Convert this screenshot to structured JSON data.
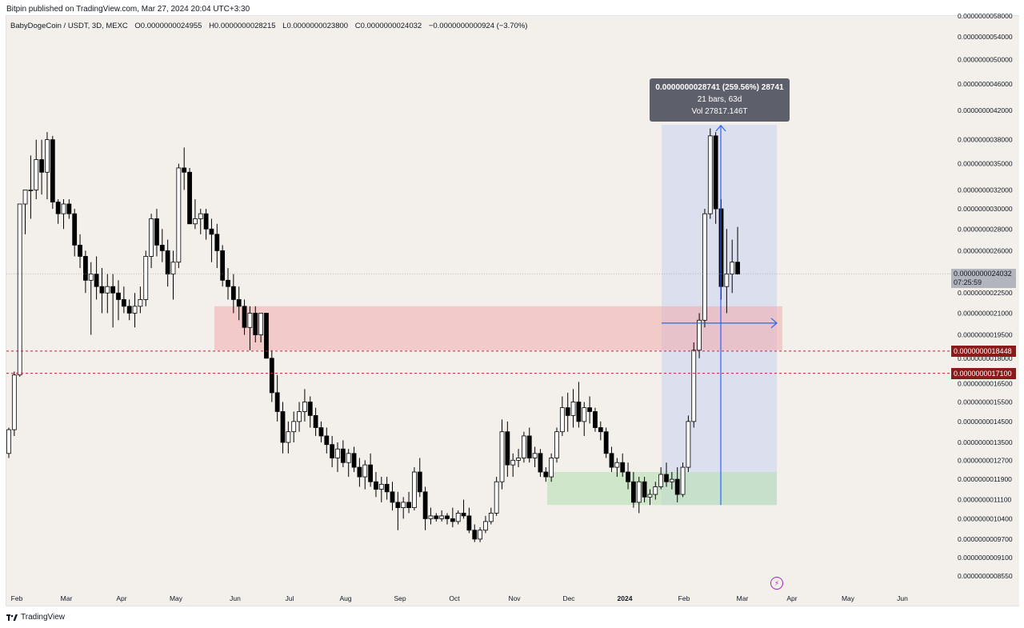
{
  "header": {
    "publisher_line": "Bitpin published on TradingView.com, Mar 27, 2024 20:04 UTC+3:30"
  },
  "legend": {
    "symbol": "BabyDogeCoin / USDT, 3D, MEXC",
    "open": "O0.0000000024955",
    "high": "H0.0000000028215",
    "low": "L0.0000000023800",
    "close": "C0.0000000024032",
    "change": "−0.0000000000924 (−3.70%)"
  },
  "measure": {
    "line1": "0.0000000028741 (259.56%) 28741",
    "line2": "21 bars, 63d",
    "line3": "Vol 27817.146T"
  },
  "price_tags": {
    "current_value": "0.0000000024032",
    "countdown": "07:25:59",
    "level_upper": "0.0000000018448",
    "level_lower": "0.0000000017100"
  },
  "footer": {
    "brand": "TradingView"
  },
  "colors": {
    "up": "#ffffff",
    "down": "#000000",
    "wick": "#000000",
    "resistance_zone": "#f2a3a8",
    "support_zone": "#b9e0b4",
    "measure_zone": "#c9d3f0",
    "arrow": "#2962ff",
    "level_line": "#b22833",
    "tag_red": "#8b1a1a"
  },
  "chart_data": {
    "type": "candlestick",
    "title": "",
    "xlabel": "",
    "ylabel": "",
    "y_scale": "log",
    "ylim": [
      8e-10,
      6.1e-09
    ],
    "y_ticks": [
      "0.0000000058000",
      "0.0000000054000",
      "0.0000000050000",
      "0.0000000046000",
      "0.0000000042000",
      "0.0000000038000",
      "0.0000000035000",
      "0.0000000032000",
      "0.0000000030000",
      "0.0000000028000",
      "0.0000000026000",
      "0.0000000022500",
      "0.0000000021000",
      "0.0000000019500",
      "0.0000000018000",
      "0.0000000016500",
      "0.0000000015500",
      "0.0000000014500",
      "0.0000000013500",
      "0.0000000012700",
      "0.0000000011900",
      "0.0000000011100",
      "0.0000000010400",
      "0.0000000009700",
      "0.0000000009100",
      "0.0000000008550"
    ],
    "x_ticks": [
      "Feb",
      "Mar",
      "Apr",
      "May",
      "Jun",
      "Jul",
      "Aug",
      "Sep",
      "Oct",
      "Nov",
      "Dec",
      "2024",
      "Feb",
      "Mar",
      "Apr",
      "May",
      "Jun"
    ],
    "candles": [
      [
        1.3,
        1.42,
        1.28,
        1.41
      ],
      [
        1.41,
        1.72,
        1.38,
        1.7
      ],
      [
        1.7,
        3.05,
        1.69,
        3.05
      ],
      [
        3.05,
        3.2,
        2.75,
        3.2
      ],
      [
        3.2,
        3.6,
        2.9,
        3.2
      ],
      [
        3.2,
        3.8,
        3.1,
        3.55
      ],
      [
        3.55,
        3.8,
        3.15,
        3.4
      ],
      [
        3.4,
        3.9,
        3.1,
        3.8
      ],
      [
        3.8,
        3.85,
        3.0,
        3.07
      ],
      [
        3.07,
        3.1,
        2.85,
        2.95
      ],
      [
        2.95,
        3.1,
        2.8,
        3.05
      ],
      [
        3.05,
        3.1,
        2.9,
        2.95
      ],
      [
        2.95,
        3.0,
        2.55,
        2.65
      ],
      [
        2.65,
        2.75,
        2.45,
        2.55
      ],
      [
        2.55,
        2.6,
        2.25,
        2.35
      ],
      [
        2.35,
        2.5,
        1.95,
        2.4
      ],
      [
        2.4,
        2.55,
        2.2,
        2.3
      ],
      [
        2.3,
        2.45,
        2.1,
        2.25
      ],
      [
        2.25,
        2.4,
        2.1,
        2.3
      ],
      [
        2.3,
        2.4,
        2.0,
        2.25
      ],
      [
        2.25,
        2.35,
        2.05,
        2.2
      ],
      [
        2.2,
        2.3,
        2.1,
        2.15
      ],
      [
        2.15,
        2.2,
        2.05,
        2.1
      ],
      [
        2.1,
        2.25,
        2.0,
        2.15
      ],
      [
        2.15,
        2.3,
        2.1,
        2.2
      ],
      [
        2.2,
        2.6,
        2.15,
        2.55
      ],
      [
        2.55,
        2.95,
        2.45,
        2.9
      ],
      [
        2.9,
        3.0,
        2.55,
        2.65
      ],
      [
        2.65,
        2.8,
        2.5,
        2.6
      ],
      [
        2.6,
        2.7,
        2.3,
        2.4
      ],
      [
        2.4,
        2.6,
        2.2,
        2.5
      ],
      [
        2.5,
        3.5,
        2.45,
        3.45
      ],
      [
        3.45,
        3.7,
        3.2,
        3.4
      ],
      [
        3.4,
        3.45,
        2.85,
        2.85
      ],
      [
        2.85,
        3.1,
        2.8,
        2.9
      ],
      [
        2.9,
        3.0,
        2.75,
        2.95
      ],
      [
        2.95,
        3.0,
        2.7,
        2.8
      ],
      [
        2.8,
        2.9,
        2.5,
        2.75
      ],
      [
        2.75,
        2.85,
        2.45,
        2.6
      ],
      [
        2.6,
        2.65,
        2.3,
        2.35
      ],
      [
        2.35,
        2.45,
        2.2,
        2.3
      ],
      [
        2.3,
        2.4,
        2.1,
        2.2
      ],
      [
        2.2,
        2.3,
        2.05,
        2.15
      ],
      [
        2.15,
        2.2,
        1.95,
        2.0
      ],
      [
        2.0,
        2.15,
        1.85,
        2.1
      ],
      [
        2.1,
        2.15,
        1.9,
        1.95
      ],
      [
        1.95,
        2.1,
        1.9,
        2.1
      ],
      [
        2.1,
        2.1,
        1.8,
        1.8
      ],
      [
        1.8,
        1.85,
        1.55,
        1.6
      ],
      [
        1.6,
        1.7,
        1.45,
        1.5
      ],
      [
        1.5,
        1.55,
        1.3,
        1.35
      ],
      [
        1.35,
        1.45,
        1.3,
        1.4
      ],
      [
        1.4,
        1.5,
        1.35,
        1.45
      ],
      [
        1.45,
        1.55,
        1.4,
        1.5
      ],
      [
        1.5,
        1.62,
        1.45,
        1.55
      ],
      [
        1.55,
        1.58,
        1.42,
        1.48
      ],
      [
        1.48,
        1.52,
        1.38,
        1.42
      ],
      [
        1.42,
        1.45,
        1.35,
        1.38
      ],
      [
        1.38,
        1.42,
        1.3,
        1.34
      ],
      [
        1.34,
        1.38,
        1.24,
        1.28
      ],
      [
        1.28,
        1.35,
        1.22,
        1.32
      ],
      [
        1.32,
        1.36,
        1.24,
        1.26
      ],
      [
        1.26,
        1.32,
        1.2,
        1.3
      ],
      [
        1.3,
        1.33,
        1.22,
        1.24
      ],
      [
        1.24,
        1.28,
        1.16,
        1.2
      ],
      [
        1.2,
        1.27,
        1.15,
        1.25
      ],
      [
        1.25,
        1.3,
        1.16,
        1.18
      ],
      [
        1.18,
        1.22,
        1.12,
        1.15
      ],
      [
        1.15,
        1.2,
        1.1,
        1.17
      ],
      [
        1.17,
        1.2,
        1.11,
        1.14
      ],
      [
        1.14,
        1.18,
        1.07,
        1.1
      ],
      [
        1.1,
        1.14,
        1.0,
        1.08
      ],
      [
        1.08,
        1.12,
        1.04,
        1.1
      ],
      [
        1.1,
        1.14,
        1.06,
        1.08
      ],
      [
        1.08,
        1.24,
        1.07,
        1.22
      ],
      [
        1.22,
        1.28,
        1.12,
        1.14
      ],
      [
        1.14,
        1.16,
        1.0,
        1.04
      ],
      [
        1.04,
        1.08,
        1.02,
        1.05
      ],
      [
        1.05,
        1.06,
        1.03,
        1.04
      ],
      [
        1.04,
        1.07,
        1.03,
        1.05
      ],
      [
        1.05,
        1.06,
        1.02,
        1.04
      ],
      [
        1.04,
        1.08,
        1.01,
        1.03
      ],
      [
        1.03,
        1.07,
        1.02,
        1.06
      ],
      [
        1.06,
        1.11,
        1.04,
        1.05
      ],
      [
        1.05,
        1.08,
        0.99,
        1.0
      ],
      [
        1.0,
        1.02,
        0.96,
        0.97
      ],
      [
        0.97,
        1.01,
        0.96,
        1.0
      ],
      [
        1.0,
        1.05,
        0.99,
        1.03
      ],
      [
        1.03,
        1.08,
        1.02,
        1.06
      ],
      [
        1.06,
        1.2,
        1.05,
        1.18
      ],
      [
        1.18,
        1.46,
        1.15,
        1.4
      ],
      [
        1.4,
        1.45,
        1.2,
        1.25
      ],
      [
        1.25,
        1.3,
        1.2,
        1.27
      ],
      [
        1.27,
        1.32,
        1.24,
        1.28
      ],
      [
        1.28,
        1.4,
        1.26,
        1.38
      ],
      [
        1.38,
        1.42,
        1.26,
        1.28
      ],
      [
        1.28,
        1.33,
        1.24,
        1.3
      ],
      [
        1.3,
        1.32,
        1.2,
        1.22
      ],
      [
        1.22,
        1.24,
        1.18,
        1.2
      ],
      [
        1.2,
        1.3,
        1.18,
        1.28
      ],
      [
        1.28,
        1.42,
        1.26,
        1.4
      ],
      [
        1.4,
        1.58,
        1.38,
        1.52
      ],
      [
        1.52,
        1.6,
        1.4,
        1.48
      ],
      [
        1.48,
        1.62,
        1.42,
        1.55
      ],
      [
        1.55,
        1.66,
        1.42,
        1.45
      ],
      [
        1.45,
        1.55,
        1.38,
        1.52
      ],
      [
        1.52,
        1.58,
        1.44,
        1.5
      ],
      [
        1.5,
        1.52,
        1.4,
        1.42
      ],
      [
        1.42,
        1.45,
        1.36,
        1.4
      ],
      [
        1.4,
        1.42,
        1.28,
        1.3
      ],
      [
        1.3,
        1.33,
        1.22,
        1.24
      ],
      [
        1.24,
        1.28,
        1.2,
        1.26
      ],
      [
        1.26,
        1.3,
        1.2,
        1.22
      ],
      [
        1.22,
        1.26,
        1.15,
        1.18
      ],
      [
        1.18,
        1.22,
        1.08,
        1.1
      ],
      [
        1.1,
        1.2,
        1.06,
        1.18
      ],
      [
        1.18,
        1.2,
        1.1,
        1.12
      ],
      [
        1.12,
        1.15,
        1.09,
        1.13
      ],
      [
        1.13,
        1.18,
        1.11,
        1.16
      ],
      [
        1.16,
        1.24,
        1.15,
        1.21
      ],
      [
        1.21,
        1.26,
        1.16,
        1.18
      ],
      [
        1.18,
        1.22,
        1.15,
        1.19
      ],
      [
        1.19,
        1.24,
        1.1,
        1.13
      ],
      [
        1.13,
        1.26,
        1.12,
        1.24
      ],
      [
        1.24,
        1.48,
        1.22,
        1.45
      ],
      [
        1.45,
        1.9,
        1.42,
        1.85
      ],
      [
        1.85,
        2.1,
        1.8,
        2.05
      ],
      [
        2.05,
        3.0,
        2.0,
        2.95
      ],
      [
        2.95,
        3.95,
        2.9,
        3.85
      ],
      [
        3.85,
        3.9,
        2.85,
        3.0
      ],
      [
        3.0,
        3.1,
        2.2,
        2.3
      ],
      [
        2.3,
        2.8,
        2.1,
        2.4
      ],
      [
        2.4,
        2.7,
        2.25,
        2.5
      ],
      [
        2.5,
        2.82,
        2.4,
        2.4
      ]
    ]
  }
}
